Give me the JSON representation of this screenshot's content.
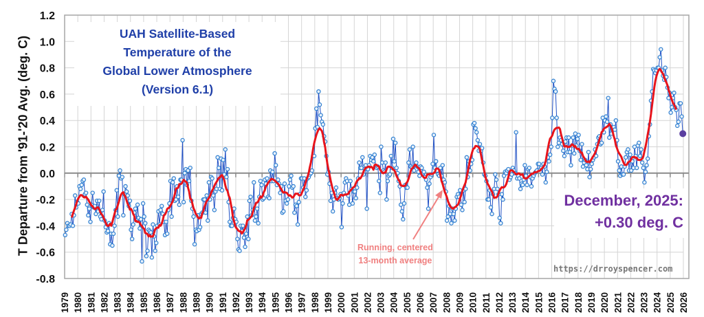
{
  "chart_data": {
    "type": "line",
    "title": [
      "UAH Satellite-Based",
      "Temperature of the",
      "Global Lower Atmosphere",
      "(Version 6.1)"
    ],
    "ylabel": "T Departure from '91-'20 Avg. (deg. C)",
    "xlabel": "",
    "ylim": [
      -0.8,
      1.2
    ],
    "yticks": [
      "1.2",
      "1.0",
      "0.8",
      "0.6",
      "0.4",
      "0.2",
      "0.0",
      "-0.2",
      "-0.4",
      "-0.6",
      "-0.8"
    ],
    "xlim": [
      1979,
      2026
    ],
    "xticks": [
      "1979",
      "1980",
      "1981",
      "1982",
      "1983",
      "1984",
      "1985",
      "1986",
      "1987",
      "1988",
      "1989",
      "1990",
      "1991",
      "1992",
      "1993",
      "1994",
      "1995",
      "1996",
      "1997",
      "1998",
      "1999",
      "2000",
      "2001",
      "2002",
      "2003",
      "2004",
      "2005",
      "2006",
      "2007",
      "2008",
      "2009",
      "2010",
      "2011",
      "2012",
      "2013",
      "2014",
      "2015",
      "2016",
      "2017",
      "2018",
      "2019",
      "2020",
      "2021",
      "2022",
      "2023",
      "2024",
      "2025",
      "2026"
    ],
    "grid": true,
    "monthly_start_year": 1979,
    "monthly_anomalies_by_year": [
      [
        -0.47,
        -0.43,
        -0.38,
        -0.4,
        -0.4,
        -0.39,
        -0.31,
        -0.4,
        -0.32,
        -0.17,
        -0.26,
        -0.22
      ],
      [
        -0.23,
        -0.1,
        -0.12,
        -0.09,
        -0.06,
        -0.05,
        -0.16,
        -0.15,
        -0.24,
        -0.32,
        -0.27,
        -0.37
      ],
      [
        -0.24,
        -0.15,
        -0.26,
        -0.25,
        -0.31,
        -0.21,
        -0.29,
        -0.21,
        -0.33,
        -0.35,
        -0.28,
        -0.14
      ],
      [
        -0.36,
        -0.41,
        -0.45,
        -0.44,
        -0.38,
        -0.54,
        -0.46,
        -0.55,
        -0.46,
        -0.4,
        -0.28,
        -0.13
      ],
      [
        -0.33,
        -0.02,
        0.02,
        -0.04,
        -0.03,
        -0.32,
        -0.16,
        -0.1,
        -0.14,
        -0.17,
        -0.25,
        -0.21
      ],
      [
        -0.43,
        -0.5,
        -0.39,
        -0.3,
        -0.27,
        -0.36,
        -0.24,
        -0.34,
        -0.42,
        -0.35,
        -0.67,
        -0.23
      ],
      [
        -0.33,
        -0.38,
        -0.63,
        -0.59,
        -0.43,
        -0.44,
        -0.45,
        -0.64,
        -0.39,
        -0.48,
        -0.59,
        -0.53
      ],
      [
        -0.4,
        -0.29,
        -0.39,
        -0.28,
        -0.25,
        -0.31,
        -0.37,
        -0.47,
        -0.37,
        -0.46,
        -0.28,
        -0.23
      ],
      [
        -0.06,
        -0.33,
        -0.07,
        -0.04,
        -0.21,
        -0.2,
        -0.1,
        -0.18,
        -0.24,
        -0.05,
        -0.05,
        0.25
      ],
      [
        -0.22,
        0.0,
        0.03,
        -0.09,
        0.02,
        -0.06,
        0.04,
        -0.21,
        -0.27,
        -0.33,
        -0.54,
        -0.43
      ],
      [
        -0.44,
        -0.32,
        -0.43,
        -0.41,
        -0.31,
        -0.3,
        -0.2,
        -0.2,
        -0.3,
        -0.17,
        -0.36,
        -0.07
      ],
      [
        -0.2,
        -0.03,
        -0.04,
        -0.17,
        -0.28,
        -0.14,
        -0.12,
        0.12,
        0.04,
        -0.12,
        0.11,
        -0.13
      ],
      [
        0.1,
        -0.01,
        0.18,
        -0.03,
        0.03,
        -0.22,
        -0.37,
        -0.4,
        -0.4,
        -0.34,
        -0.27,
        -0.35
      ],
      [
        -0.37,
        -0.5,
        -0.58,
        -0.59,
        -0.4,
        -0.44,
        -0.4,
        -0.49,
        -0.56,
        -0.46,
        -0.33,
        -0.5
      ],
      [
        -0.21,
        -0.18,
        -0.32,
        -0.28,
        -0.07,
        -0.36,
        -0.33,
        -0.27,
        -0.38,
        -0.18,
        -0.06,
        -0.09
      ],
      [
        -0.2,
        -0.19,
        -0.05,
        -0.08,
        -0.04,
        -0.18,
        -0.19,
        0.02,
        -0.06,
        0.01,
        -0.06,
        0.15
      ],
      [
        0.06,
        -0.09,
        -0.05,
        -0.08,
        -0.15,
        -0.1,
        -0.3,
        -0.29,
        -0.08,
        -0.21,
        -0.23,
        -0.2
      ],
      [
        -0.1,
        -0.05,
        -0.02,
        -0.11,
        -0.1,
        -0.3,
        -0.24,
        -0.25,
        -0.39,
        -0.22,
        -0.16,
        -0.04
      ],
      [
        -0.04,
        -0.11,
        -0.04,
        -0.18,
        -0.13,
        -0.04,
        -0.03,
        -0.01,
        0.0,
        0.02,
        0.13,
        0.13
      ],
      [
        0.34,
        0.49,
        0.35,
        0.62,
        0.52,
        0.44,
        0.39,
        0.37,
        0.28,
        0.24,
        0.13,
        -0.01
      ],
      [
        0.01,
        -0.08,
        -0.21,
        -0.15,
        -0.29,
        -0.2,
        -0.15,
        -0.11,
        -0.19,
        -0.2,
        -0.19,
        -0.16
      ],
      [
        -0.41,
        -0.23,
        -0.15,
        -0.07,
        -0.04,
        -0.06,
        -0.17,
        -0.24,
        -0.06,
        -0.12,
        -0.23,
        -0.14
      ],
      [
        -0.14,
        -0.19,
        -0.11,
        -0.04,
        0.08,
        0.04,
        0.04,
        0.12,
        -0.01,
        0.03,
        0.06,
        -0.27
      ],
      [
        0.03,
        0.06,
        0.13,
        0.1,
        0.12,
        0.09,
        0.14,
        0.05,
        0.04,
        0.05,
        -0.06,
        -0.15
      ],
      [
        0.2,
        0.08,
        0.02,
        0.01,
        0.08,
        -0.2,
        -0.06,
        -0.02,
        -0.01,
        0.13,
        0.04,
        0.26
      ],
      [
        0.09,
        0.23,
        0.04,
        0.0,
        -0.06,
        -0.1,
        -0.24,
        -0.29,
        -0.35,
        -0.23,
        -0.09,
        -0.11
      ],
      [
        -0.11,
        0.08,
        0.18,
        0.05,
        0.04,
        0.2,
        0.02,
        0.06,
        0.08,
        0.05,
        0.01,
        -0.02
      ],
      [
        0.05,
        0.04,
        0.0,
        0.01,
        -0.03,
        -0.05,
        -0.11,
        -0.27,
        -0.08,
        -0.03,
        -0.01,
        0.07
      ],
      [
        0.29,
        0.04,
        0.09,
        0.02,
        -0.01,
        -0.02,
        0.04,
        -0.02,
        0.06,
        -0.05,
        -0.07,
        -0.14
      ],
      [
        -0.36,
        -0.33,
        -0.25,
        -0.31,
        -0.38,
        -0.27,
        -0.31,
        -0.36,
        -0.27,
        -0.18,
        -0.16,
        -0.18
      ],
      [
        -0.13,
        -0.24,
        -0.28,
        -0.13,
        -0.22,
        -0.12,
        0.12,
        -0.03,
        0.09,
        0.02,
        0.07,
        0.1
      ],
      [
        0.37,
        0.38,
        0.34,
        0.31,
        0.25,
        0.17,
        0.22,
        0.17,
        0.19,
        0.08,
        -0.01,
        -0.02
      ],
      [
        -0.06,
        -0.2,
        -0.2,
        -0.13,
        -0.26,
        -0.31,
        -0.16,
        -0.12,
        -0.01,
        -0.05,
        -0.12,
        -0.16
      ],
      [
        -0.34,
        -0.38,
        -0.16,
        -0.2,
        -0.02,
        0.01,
        0.0,
        0.02,
        0.03,
        -0.05,
        -0.03,
        -0.01
      ],
      [
        0.04,
        0.02,
        0.0,
        0.31,
        -0.04,
        -0.02,
        -0.04,
        -0.12,
        -0.08,
        -0.09,
        -0.05,
        0.06
      ],
      [
        -0.02,
        -0.09,
        0.03,
        0.04,
        -0.03,
        -0.1,
        -0.04,
        -0.02,
        0.0,
        0.01,
        0.02,
        0.07
      ],
      [
        0.07,
        0.03,
        0.04,
        -0.01,
        0.07,
        0.05,
        -0.07,
        0.01,
        0.12,
        0.09,
        0.14,
        0.2
      ],
      [
        0.42,
        0.7,
        0.64,
        0.62,
        0.42,
        0.2,
        0.23,
        0.27,
        0.25,
        0.22,
        0.17,
        0.13
      ],
      [
        0.24,
        0.27,
        0.16,
        0.27,
        0.16,
        0.06,
        0.21,
        0.27,
        0.15,
        0.3,
        0.21,
        0.26
      ],
      [
        0.29,
        0.17,
        0.1,
        0.22,
        0.05,
        0.08,
        0.1,
        0.06,
        0.03,
        0.16,
        -0.03,
        0.03
      ],
      [
        0.07,
        0.1,
        0.12,
        0.18,
        0.13,
        0.22,
        0.27,
        0.28,
        0.22,
        0.23,
        0.42,
        0.31
      ],
      [
        0.4,
        0.43,
        0.39,
        0.57,
        0.27,
        0.37,
        0.3,
        0.33,
        0.35,
        0.33,
        0.4,
        0.25
      ],
      [
        0.09,
        0.02,
        -0.02,
        0.05,
        -0.01,
        -0.01,
        0.05,
        0.12,
        0.16,
        0.18,
        0.02,
        0.14
      ],
      [
        0.02,
        0.09,
        0.04,
        0.2,
        0.13,
        0.04,
        0.21,
        0.23,
        0.13,
        0.18,
        0.08,
        0.04
      ],
      [
        -0.07,
        0.01,
        0.06,
        0.11,
        0.28,
        0.37,
        0.55,
        0.62,
        0.79,
        0.78,
        0.76,
        0.78
      ],
      [
        0.8,
        0.8,
        0.88,
        0.94,
        0.78,
        0.74,
        0.71,
        0.8,
        0.73,
        0.65,
        0.57,
        0.61
      ],
      [
        0.46,
        0.5,
        0.57,
        0.61,
        0.5,
        0.48,
        0.36,
        0.39,
        0.53,
        0.53,
        0.43,
        0.3
      ]
    ],
    "running_average_window_months": 13,
    "annotations": {
      "latest_line1": "December, 2025:",
      "latest_line2": "+0.30 deg. C",
      "running_line1": "Running, centered",
      "running_line2": "13-month average",
      "url": "https://drroyspencer.com"
    },
    "colors": {
      "monthly": "#1f4fc4",
      "marker": "#2e7fd0",
      "running": "#e8141b",
      "latest": "#5b3fa0",
      "title": "#1f3fa8",
      "latest_text": "#7030a0",
      "running_text": "#f08080"
    }
  }
}
